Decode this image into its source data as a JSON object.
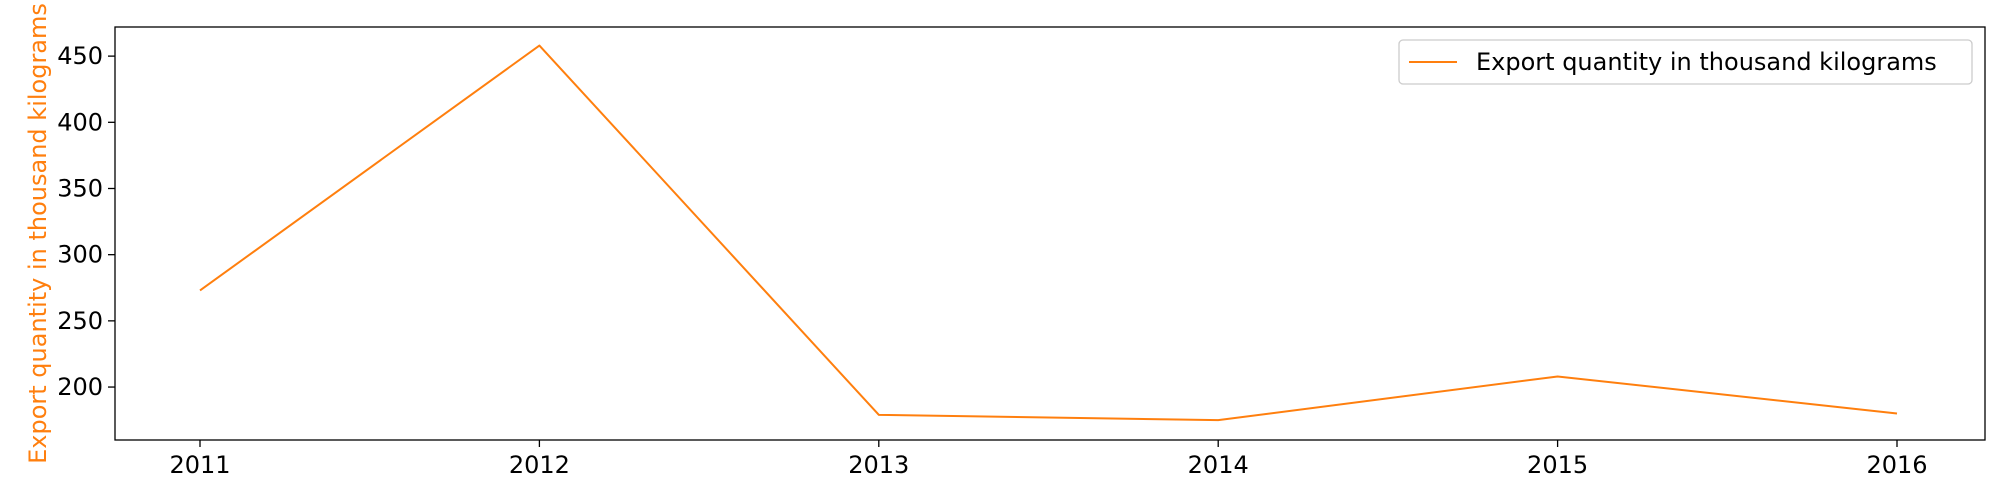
{
  "chart_data": {
    "type": "line",
    "categories": [
      "2011",
      "2012",
      "2013",
      "2014",
      "2015",
      "2016"
    ],
    "series": [
      {
        "name": "Export quantity in thousand kilograms",
        "values": [
          273,
          458,
          179,
          175,
          208,
          180
        ],
        "color": "#ff7f0e"
      }
    ],
    "title": "",
    "xlabel": "",
    "ylabel": "Export quantity in thousand kilograms",
    "ylabel_color": "#ff7f0e",
    "ylim": [
      160,
      472
    ],
    "yticks": [
      200,
      250,
      300,
      350,
      400,
      450
    ],
    "grid": false,
    "legend_position": "upper right"
  }
}
